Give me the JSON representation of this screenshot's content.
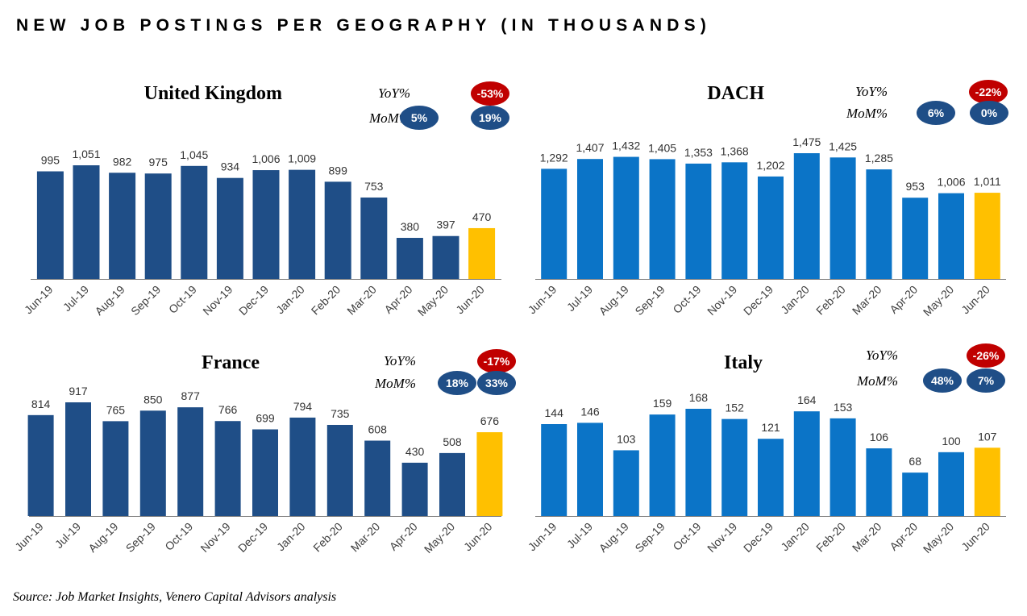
{
  "page": {
    "title": "NEW JOB POSTINGS PER GEOGRAPHY (IN THOUSANDS)",
    "source": "Source: Job Market Insights, Venero Capital Advisors analysis"
  },
  "colors": {
    "uk_france_bar": "#1F4E87",
    "dach_italy_bar": "#0B74C7",
    "highlight_bar": "#FFC000",
    "badge_negative": "#C00000",
    "badge_positive": "#1F4E87",
    "axis": "#7F7F7F"
  },
  "chart_data": [
    {
      "type": "bar",
      "title": "United Kingdom",
      "categories": [
        "Jun-19",
        "Jul-19",
        "Aug-19",
        "Sep-19",
        "Oct-19",
        "Nov-19",
        "Dec-19",
        "Jan-20",
        "Feb-20",
        "Mar-20",
        "Apr-20",
        "May-20",
        "Jun-20"
      ],
      "values": [
        995,
        1051,
        982,
        975,
        1045,
        934,
        1006,
        1009,
        899,
        753,
        380,
        397,
        470
      ],
      "value_labels": [
        "995",
        "1,051",
        "982",
        "975",
        "1,045",
        "934",
        "1,006",
        "1,009",
        "899",
        "753",
        "380",
        "397",
        "470"
      ],
      "highlight_last": true,
      "yoy_label": "YoY%",
      "yoy_value": "-53%",
      "mom_label": "MoM%",
      "mom_values": [
        "5%",
        "19%"
      ]
    },
    {
      "type": "bar",
      "title": "DACH",
      "categories": [
        "Jun-19",
        "Jul-19",
        "Aug-19",
        "Sep-19",
        "Oct-19",
        "Nov-19",
        "Dec-19",
        "Jan-20",
        "Feb-20",
        "Mar-20",
        "Apr-20",
        "May-20",
        "Jun-20"
      ],
      "values": [
        1292,
        1407,
        1432,
        1405,
        1353,
        1368,
        1202,
        1475,
        1425,
        1285,
        953,
        1006,
        1011
      ],
      "value_labels": [
        "1,292",
        "1,407",
        "1,432",
        "1,405",
        "1,353",
        "1,368",
        "1,202",
        "1,475",
        "1,425",
        "1,285",
        "953",
        "1,006",
        "1,011"
      ],
      "highlight_last": true,
      "yoy_label": "YoY%",
      "yoy_value": "-22%",
      "mom_label": "MoM%",
      "mom_values": [
        "6%",
        "0%"
      ]
    },
    {
      "type": "bar",
      "title": "France",
      "categories": [
        "Jun-19",
        "Jul-19",
        "Aug-19",
        "Sep-19",
        "Oct-19",
        "Nov-19",
        "Dec-19",
        "Jan-20",
        "Feb-20",
        "Mar-20",
        "Apr-20",
        "May-20",
        "Jun-20"
      ],
      "values": [
        814,
        917,
        765,
        850,
        877,
        766,
        699,
        794,
        735,
        608,
        430,
        508,
        676
      ],
      "value_labels": [
        "814",
        "917",
        "765",
        "850",
        "877",
        "766",
        "699",
        "794",
        "735",
        "608",
        "430",
        "508",
        "676"
      ],
      "highlight_last": true,
      "yoy_label": "YoY%",
      "yoy_value": "-17%",
      "mom_label": "MoM%",
      "mom_values": [
        "18%",
        "33%"
      ]
    },
    {
      "type": "bar",
      "title": "Italy",
      "categories": [
        "Jun-19",
        "Jul-19",
        "Aug-19",
        "Sep-19",
        "Oct-19",
        "Nov-19",
        "Dec-19",
        "Jan-20",
        "Feb-20",
        "Mar-20",
        "Apr-20",
        "May-20",
        "Jun-20"
      ],
      "values": [
        144,
        146,
        103,
        159,
        168,
        152,
        121,
        164,
        153,
        106,
        68,
        100,
        107
      ],
      "value_labels": [
        "144",
        "146",
        "103",
        "159",
        "168",
        "152",
        "121",
        "164",
        "153",
        "106",
        "68",
        "100",
        "107"
      ],
      "highlight_last": true,
      "yoy_label": "YoY%",
      "yoy_value": "-26%",
      "mom_label": "MoM%",
      "mom_values": [
        "48%",
        "7%"
      ]
    }
  ]
}
